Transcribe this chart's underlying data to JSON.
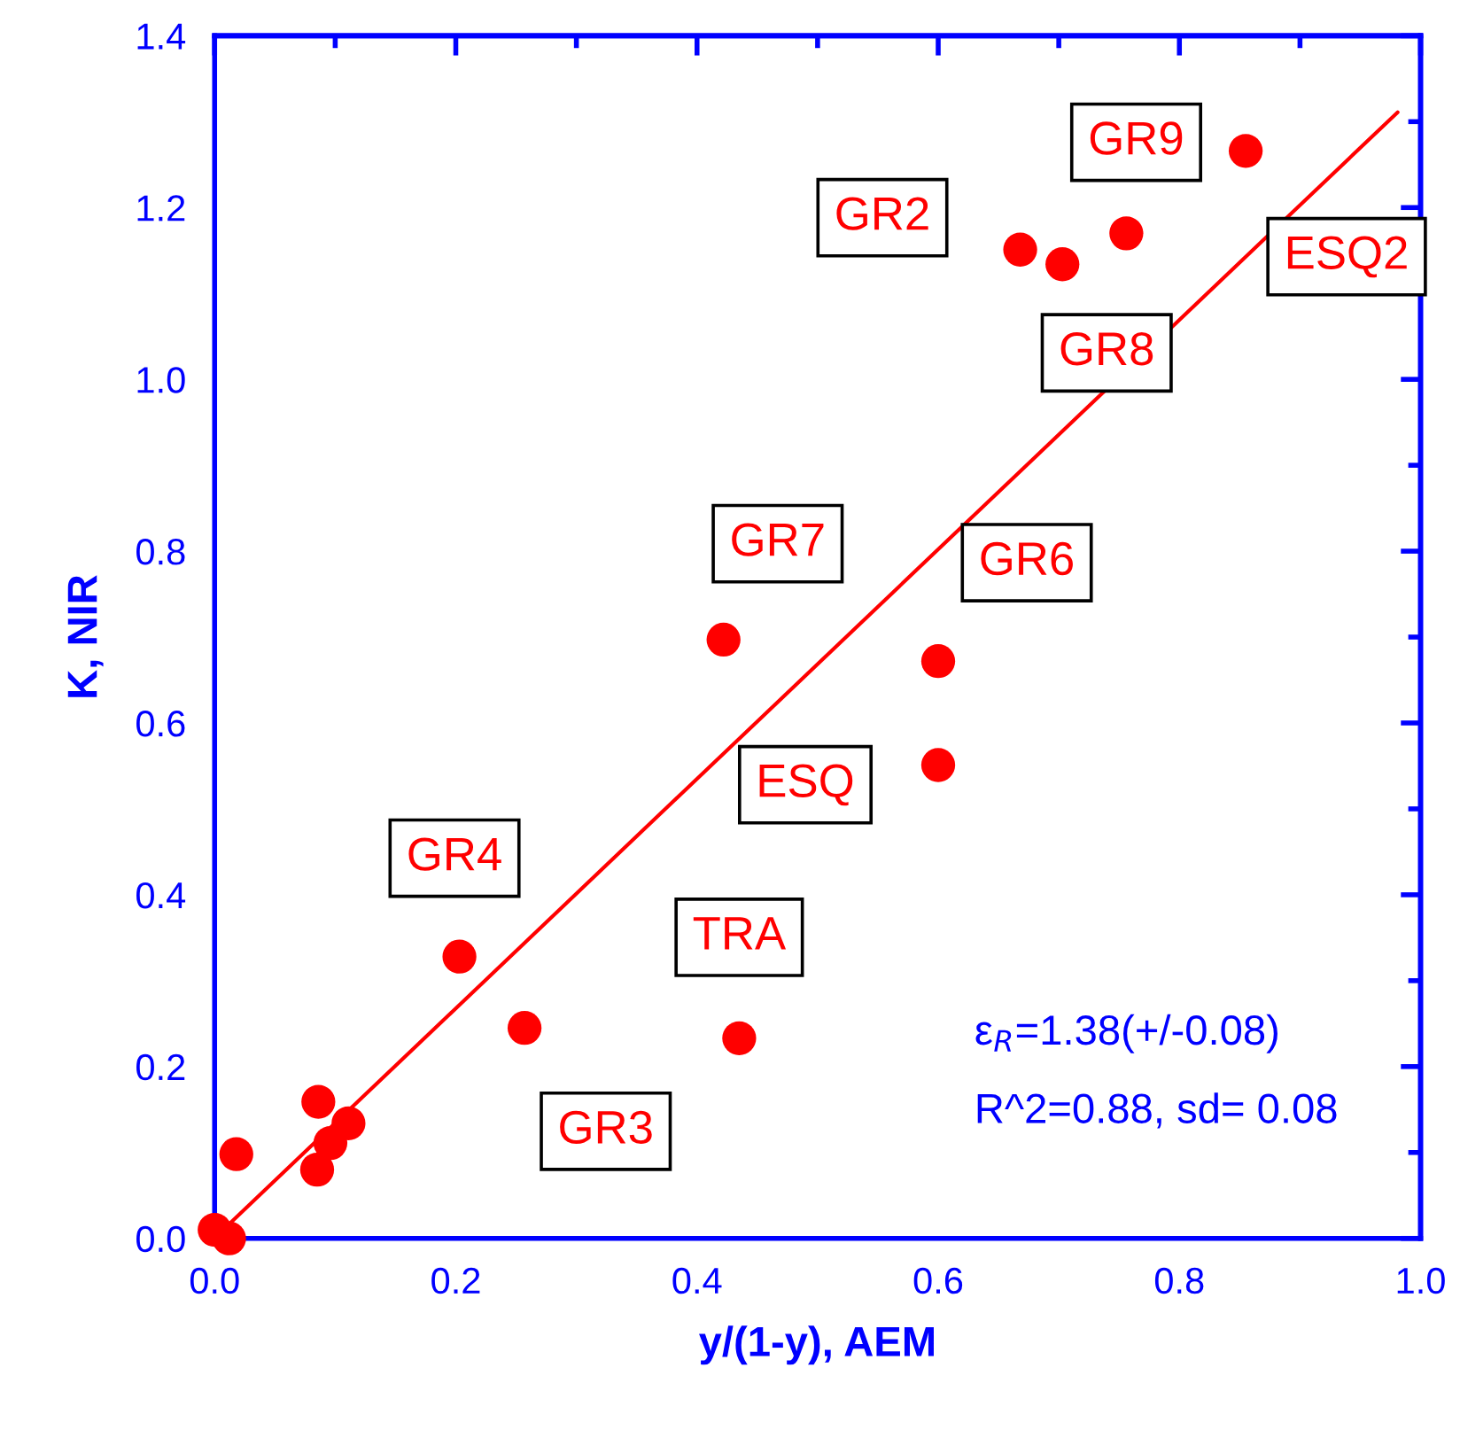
{
  "chart_data": {
    "type": "scatter",
    "xlabel": "y/(1-y), AEM",
    "ylabel": "K, NIR",
    "xlim": [
      0.0,
      1.0
    ],
    "ylim": [
      0.0,
      1.4
    ],
    "xticks": [
      {
        "value": 0.0,
        "label": "0.0"
      },
      {
        "value": 0.2,
        "label": "0.2"
      },
      {
        "value": 0.4,
        "label": "0.4"
      },
      {
        "value": 0.6,
        "label": "0.6"
      },
      {
        "value": 0.8,
        "label": "0.8"
      },
      {
        "value": 1.0,
        "label": "1.0"
      }
    ],
    "yticks": [
      {
        "value": 0.0,
        "label": "0.0"
      },
      {
        "value": 0.2,
        "label": "0.2"
      },
      {
        "value": 0.4,
        "label": "0.4"
      },
      {
        "value": 0.6,
        "label": "0.6"
      },
      {
        "value": 0.8,
        "label": "0.8"
      },
      {
        "value": 1.0,
        "label": "1.0"
      },
      {
        "value": 1.2,
        "label": "1.2"
      },
      {
        "value": 1.4,
        "label": "1.4"
      }
    ],
    "grid": false,
    "legend": false,
    "series": [
      {
        "marker": "circle",
        "color": "#ff0000",
        "x": [
          0.0,
          0.012,
          0.018,
          0.086,
          0.085,
          0.096,
          0.111,
          0.203,
          0.257,
          0.422,
          0.435,
          0.6,
          0.6,
          0.668,
          0.703,
          0.756,
          0.855
        ],
        "values": [
          0.01,
          0.0,
          0.098,
          0.159,
          0.08,
          0.111,
          0.134,
          0.328,
          0.245,
          0.697,
          0.233,
          0.672,
          0.551,
          1.151,
          1.134,
          1.17,
          1.266
        ]
      },
      {
        "type": "line",
        "marker": "none",
        "color": "#ff0000",
        "line_style": "solid",
        "x": [
          0.01,
          0.981
        ],
        "values": [
          0.014,
          1.311
        ]
      }
    ],
    "annotations": [
      {
        "text": "GR7",
        "x": 0.422,
        "y": 0.697
      },
      {
        "text": "GR6",
        "x": 0.6,
        "y": 0.672
      },
      {
        "text": "ESQ",
        "x": 0.6,
        "y": 0.551
      },
      {
        "text": "GR4",
        "x": 0.203,
        "y": 0.328
      },
      {
        "text": "TRA",
        "x": 0.435,
        "y": 0.233
      },
      {
        "text": "GR3",
        "x": 0.257,
        "y": 0.245
      },
      {
        "text": "GR2",
        "x": 0.668,
        "y": 1.151
      },
      {
        "text": "GR8",
        "x": 0.703,
        "y": 1.134
      },
      {
        "text": "GR9",
        "x": 0.756,
        "y": 1.17
      },
      {
        "text": "ESQ2",
        "x": 0.855,
        "y": 1.266
      },
      "ε$_{R}$=1.38(+/-0.08)",
      "R^2=0.88, sd= 0.08"
    ]
  }
}
